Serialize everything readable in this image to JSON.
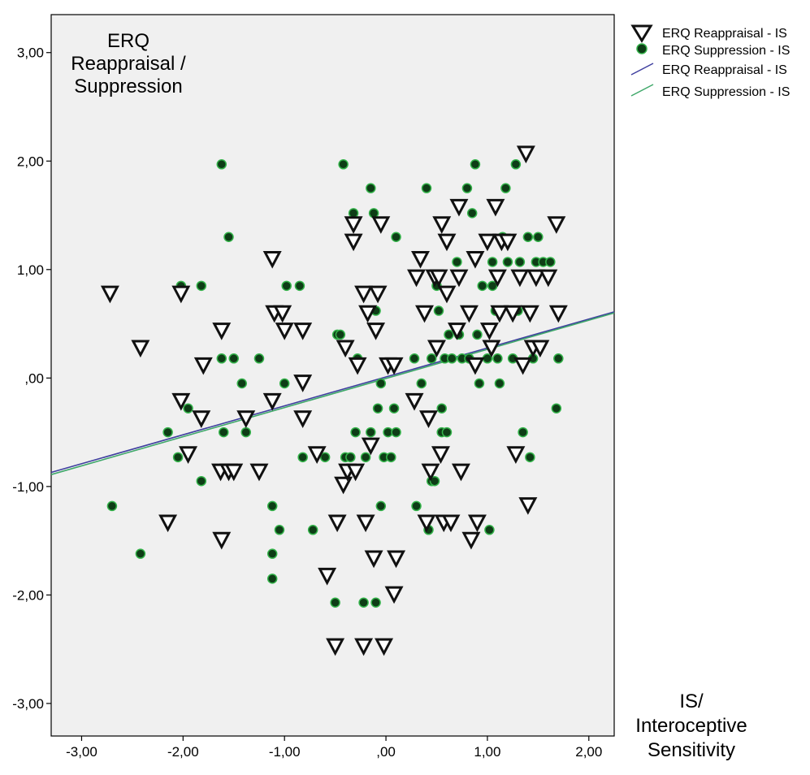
{
  "chart_data": {
    "type": "scatter",
    "title": "",
    "ylabel_lines": [
      "ERQ",
      "Reappraisal /",
      "Suppression"
    ],
    "xlabel_lines": [
      "IS/",
      "Interoceptive",
      "Sensitivity"
    ],
    "xlim": [
      -3.3,
      2.25
    ],
    "ylim": [
      -3.3,
      3.35
    ],
    "x_ticks": [
      -3,
      -2,
      -1,
      0,
      1,
      2
    ],
    "x_tick_labels": [
      "-3,00",
      "-2,00",
      "-1,00",
      ",00",
      "1,00",
      "2,00"
    ],
    "y_ticks": [
      -3,
      -2,
      -1,
      0,
      1,
      2,
      3
    ],
    "y_tick_labels": [
      "-3,00",
      "-2,00",
      "-1,00",
      ",00",
      "1,00",
      "2,00",
      "3,00"
    ],
    "grid": false,
    "plot_background": "#f0f0f0",
    "legend_position": "top-right (outside plot)",
    "legend": [
      {
        "label": "ERQ Reappraisal - IS",
        "kind": "triangle"
      },
      {
        "label": "ERQ Suppression - IS",
        "kind": "dot"
      },
      {
        "label": "ERQ Reappraisal - IS",
        "kind": "line",
        "color": "#3f3f9f"
      },
      {
        "label": "ERQ Suppression - IS",
        "kind": "line",
        "color": "#3fa86a"
      }
    ],
    "series": [
      {
        "name": "ERQ Reappraisal - IS",
        "marker": "triangle-down",
        "fill": "#ffffff",
        "stroke": "#111111",
        "points": [
          [
            -2.72,
            0.78
          ],
          [
            -2.42,
            0.28
          ],
          [
            -2.15,
            -1.33
          ],
          [
            -2.02,
            0.78
          ],
          [
            -2.02,
            -0.21
          ],
          [
            -1.95,
            -0.7
          ],
          [
            -1.82,
            -0.37
          ],
          [
            -1.8,
            0.12
          ],
          [
            -1.63,
            -0.86
          ],
          [
            -1.62,
            0.44
          ],
          [
            -1.62,
            -1.49
          ],
          [
            -1.55,
            -0.86
          ],
          [
            -1.5,
            -0.86
          ],
          [
            -1.38,
            -0.37
          ],
          [
            -1.25,
            -0.86
          ],
          [
            -1.12,
            1.1
          ],
          [
            -1.12,
            -0.21
          ],
          [
            -1.1,
            0.6
          ],
          [
            -1.02,
            0.6
          ],
          [
            -1.0,
            0.44
          ],
          [
            -0.82,
            0.44
          ],
          [
            -0.82,
            -0.37
          ],
          [
            -0.82,
            -0.04
          ],
          [
            -0.68,
            -0.7
          ],
          [
            -0.58,
            -1.82
          ],
          [
            -0.5,
            -2.47
          ],
          [
            -0.48,
            -1.33
          ],
          [
            -0.42,
            -0.98
          ],
          [
            -0.4,
            0.28
          ],
          [
            -0.38,
            -0.86
          ],
          [
            -0.32,
            1.26
          ],
          [
            -0.32,
            1.42
          ],
          [
            -0.3,
            -0.86
          ],
          [
            -0.28,
            0.12
          ],
          [
            -0.22,
            -2.47
          ],
          [
            -0.22,
            0.78
          ],
          [
            -0.2,
            -1.33
          ],
          [
            -0.18,
            0.6
          ],
          [
            -0.15,
            -0.62
          ],
          [
            -0.12,
            -1.66
          ],
          [
            -0.1,
            0.44
          ],
          [
            -0.08,
            0.78
          ],
          [
            -0.05,
            1.42
          ],
          [
            -0.02,
            -2.47
          ],
          [
            0.02,
            0.12
          ],
          [
            0.08,
            0.12
          ],
          [
            0.08,
            -1.99
          ],
          [
            0.1,
            -1.66
          ],
          [
            0.28,
            -0.21
          ],
          [
            0.3,
            0.93
          ],
          [
            0.34,
            1.1
          ],
          [
            0.38,
            0.6
          ],
          [
            0.4,
            -1.33
          ],
          [
            0.42,
            -0.37
          ],
          [
            0.44,
            -0.86
          ],
          [
            0.48,
            0.93
          ],
          [
            0.5,
            0.28
          ],
          [
            0.52,
            0.93
          ],
          [
            0.54,
            -0.7
          ],
          [
            0.55,
            1.42
          ],
          [
            0.57,
            -1.33
          ],
          [
            0.6,
            1.26
          ],
          [
            0.6,
            0.78
          ],
          [
            0.64,
            -1.33
          ],
          [
            0.7,
            0.44
          ],
          [
            0.72,
            0.93
          ],
          [
            0.72,
            1.58
          ],
          [
            0.74,
            -0.86
          ],
          [
            0.82,
            0.6
          ],
          [
            0.84,
            -1.49
          ],
          [
            0.88,
            0.12
          ],
          [
            0.88,
            1.1
          ],
          [
            0.9,
            -1.33
          ],
          [
            1.0,
            1.26
          ],
          [
            1.02,
            0.44
          ],
          [
            1.04,
            0.28
          ],
          [
            1.08,
            1.58
          ],
          [
            1.1,
            0.93
          ],
          [
            1.12,
            0.6
          ],
          [
            1.14,
            1.26
          ],
          [
            1.2,
            1.26
          ],
          [
            1.25,
            0.6
          ],
          [
            1.28,
            -0.7
          ],
          [
            1.32,
            0.93
          ],
          [
            1.35,
            0.12
          ],
          [
            1.38,
            2.07
          ],
          [
            1.4,
            -1.17
          ],
          [
            1.42,
            0.6
          ],
          [
            1.45,
            0.28
          ],
          [
            1.48,
            0.93
          ],
          [
            1.52,
            0.28
          ],
          [
            1.6,
            0.93
          ],
          [
            1.68,
            1.42
          ],
          [
            1.7,
            0.6
          ]
        ]
      },
      {
        "name": "ERQ Suppression - IS",
        "marker": "circle",
        "fill": "#0e3d16",
        "stroke": "#34b34a",
        "points": [
          [
            -2.7,
            -1.18
          ],
          [
            -2.42,
            -1.62
          ],
          [
            -2.15,
            -0.5
          ],
          [
            -2.05,
            -0.73
          ],
          [
            -2.02,
            0.85
          ],
          [
            -1.95,
            -0.28
          ],
          [
            -1.82,
            0.85
          ],
          [
            -1.82,
            -0.95
          ],
          [
            -1.62,
            1.97
          ],
          [
            -1.62,
            0.18
          ],
          [
            -1.6,
            -0.5
          ],
          [
            -1.55,
            1.3
          ],
          [
            -1.5,
            0.18
          ],
          [
            -1.42,
            -0.05
          ],
          [
            -1.38,
            -0.5
          ],
          [
            -1.25,
            0.18
          ],
          [
            -1.12,
            -1.18
          ],
          [
            -1.12,
            -1.62
          ],
          [
            -1.12,
            -1.85
          ],
          [
            -1.05,
            -1.4
          ],
          [
            -1.0,
            -0.05
          ],
          [
            -0.98,
            0.85
          ],
          [
            -0.85,
            0.85
          ],
          [
            -0.82,
            -0.73
          ],
          [
            -0.72,
            -1.4
          ],
          [
            -0.6,
            -0.73
          ],
          [
            -0.5,
            -2.07
          ],
          [
            -0.48,
            0.4
          ],
          [
            -0.45,
            0.4
          ],
          [
            -0.42,
            1.97
          ],
          [
            -0.4,
            -0.73
          ],
          [
            -0.35,
            -0.73
          ],
          [
            -0.32,
            1.52
          ],
          [
            -0.3,
            -0.5
          ],
          [
            -0.28,
            0.18
          ],
          [
            -0.22,
            -2.07
          ],
          [
            -0.2,
            -0.73
          ],
          [
            -0.15,
            1.75
          ],
          [
            -0.15,
            -0.5
          ],
          [
            -0.12,
            1.52
          ],
          [
            -0.1,
            0.62
          ],
          [
            -0.1,
            -2.07
          ],
          [
            -0.08,
            -0.28
          ],
          [
            -0.05,
            -0.05
          ],
          [
            -0.05,
            -1.18
          ],
          [
            -0.02,
            -0.73
          ],
          [
            0.02,
            -0.5
          ],
          [
            0.05,
            -0.73
          ],
          [
            0.08,
            -0.28
          ],
          [
            0.1,
            1.3
          ],
          [
            0.1,
            -0.5
          ],
          [
            0.28,
            0.18
          ],
          [
            0.3,
            -1.18
          ],
          [
            0.35,
            -0.05
          ],
          [
            0.4,
            1.75
          ],
          [
            0.42,
            -1.4
          ],
          [
            0.45,
            0.18
          ],
          [
            0.45,
            -0.95
          ],
          [
            0.48,
            -0.95
          ],
          [
            0.5,
            0.85
          ],
          [
            0.52,
            0.62
          ],
          [
            0.55,
            -0.28
          ],
          [
            0.55,
            -0.5
          ],
          [
            0.58,
            0.18
          ],
          [
            0.6,
            -0.5
          ],
          [
            0.62,
            0.4
          ],
          [
            0.65,
            0.18
          ],
          [
            0.7,
            1.07
          ],
          [
            0.72,
            0.4
          ],
          [
            0.75,
            0.18
          ],
          [
            0.8,
            1.75
          ],
          [
            0.82,
            0.18
          ],
          [
            0.85,
            1.52
          ],
          [
            0.88,
            1.97
          ],
          [
            0.9,
            0.4
          ],
          [
            0.92,
            -0.05
          ],
          [
            0.95,
            0.85
          ],
          [
            1.0,
            0.18
          ],
          [
            1.02,
            -1.4
          ],
          [
            1.05,
            0.85
          ],
          [
            1.05,
            1.07
          ],
          [
            1.08,
            0.62
          ],
          [
            1.1,
            0.18
          ],
          [
            1.12,
            -0.05
          ],
          [
            1.15,
            1.3
          ],
          [
            1.18,
            1.75
          ],
          [
            1.2,
            1.07
          ],
          [
            1.25,
            0.18
          ],
          [
            1.28,
            1.97
          ],
          [
            1.3,
            0.62
          ],
          [
            1.32,
            1.07
          ],
          [
            1.35,
            -0.5
          ],
          [
            1.4,
            1.3
          ],
          [
            1.42,
            -0.73
          ],
          [
            1.45,
            0.18
          ],
          [
            1.48,
            1.07
          ],
          [
            1.5,
            1.3
          ],
          [
            1.55,
            1.07
          ],
          [
            1.62,
            1.07
          ],
          [
            1.68,
            -0.28
          ],
          [
            1.7,
            0.18
          ]
        ]
      }
    ],
    "fit_lines": [
      {
        "name": "ERQ Reappraisal - IS",
        "color": "#3f3f9f",
        "x": [
          -3.3,
          2.25
        ],
        "y": [
          -0.87,
          0.61
        ]
      },
      {
        "name": "ERQ Suppression - IS",
        "color": "#3fa86a",
        "x": [
          -3.3,
          2.25
        ],
        "y": [
          -0.89,
          0.6
        ]
      }
    ]
  }
}
